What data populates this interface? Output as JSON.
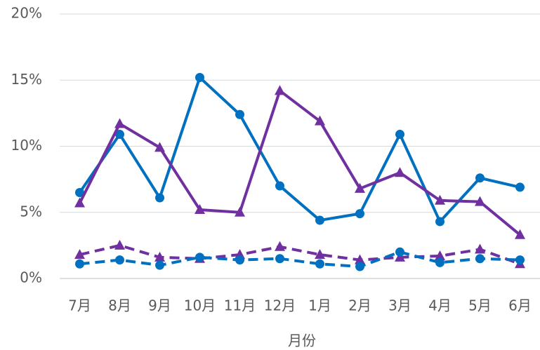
{
  "chart_data": {
    "type": "line",
    "x_label": "月份",
    "categories": [
      "7月",
      "8月",
      "9月",
      "10月",
      "11月",
      "12月",
      "1月",
      "2月",
      "3月",
      "4月",
      "5月",
      "6月"
    ],
    "series": [
      {
        "color": "#0070c0",
        "marker": "circle",
        "dash": false,
        "values": [
          6.5,
          10.9,
          6.1,
          15.2,
          12.4,
          7.0,
          4.4,
          4.9,
          10.9,
          4.3,
          7.6,
          6.9
        ]
      },
      {
        "color": "#7030a0",
        "marker": "triangle",
        "dash": false,
        "values": [
          5.7,
          11.7,
          9.9,
          5.2,
          5.0,
          14.2,
          11.9,
          6.8,
          8.0,
          5.9,
          5.8,
          3.3
        ]
      },
      {
        "color": "#7030a0",
        "marker": "triangle",
        "dash": true,
        "values": [
          1.8,
          2.5,
          1.6,
          1.5,
          1.8,
          2.4,
          1.8,
          1.4,
          1.6,
          1.7,
          2.2,
          1.1
        ]
      },
      {
        "color": "#0070c0",
        "marker": "circle",
        "dash": true,
        "values": [
          1.1,
          1.4,
          1.0,
          1.6,
          1.4,
          1.5,
          1.1,
          0.9,
          2.0,
          1.2,
          1.5,
          1.4
        ]
      }
    ],
    "ylim": [
      0,
      20
    ],
    "yticks": [
      {
        "value": 0,
        "label": "0%"
      },
      {
        "value": 5,
        "label": "5%"
      },
      {
        "value": 10,
        "label": "10%"
      },
      {
        "value": 15,
        "label": "15%"
      },
      {
        "value": 20,
        "label": "20%"
      }
    ],
    "grid": true
  }
}
